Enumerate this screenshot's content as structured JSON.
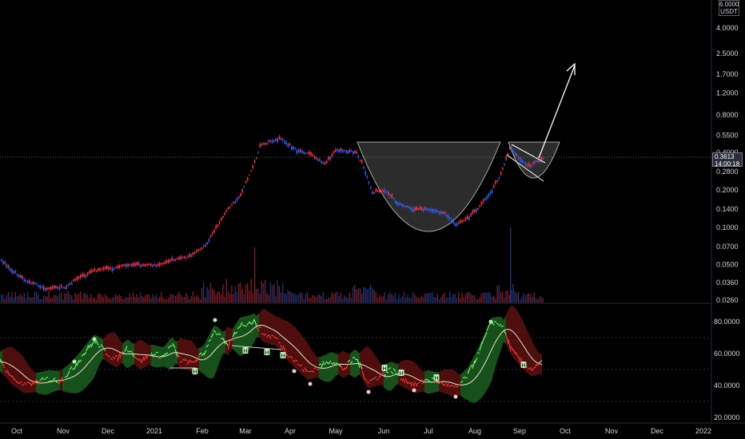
{
  "price_axis": {
    "unit": "USDT",
    "top_value": "6.0000",
    "ticks": [
      "4.0000",
      "2.5000",
      "1.7000",
      "1.2000",
      "0.8000",
      "0.5500",
      "0.4000",
      "0.2800",
      "0.2000",
      "0.1400",
      "0.1000",
      "0.0700",
      "0.0500",
      "0.0360",
      "0.0260"
    ],
    "current_price": "0.3613",
    "countdown": "14:00:18"
  },
  "oscillator_axis": {
    "ticks": [
      "80.0000",
      "60.0000",
      "40.0000",
      "20.0000"
    ]
  },
  "time_axis": {
    "labels": [
      "Oct",
      "Nov",
      "Dec",
      "2021",
      "Feb",
      "Mar",
      "Apr",
      "May",
      "Jun",
      "Jul",
      "Aug",
      "Sep",
      "Oct",
      "Nov",
      "Dec",
      "2022"
    ]
  },
  "colors": {
    "background": "#000000",
    "candle_up": "#f23645",
    "candle_down": "#2962ff",
    "cloud_green": "#1b5e20",
    "cloud_red": "#5c1010",
    "line_green": "#4caf50",
    "line_red": "#f23645",
    "pattern_fill": "#3a3a3a",
    "arrow": "#ffffff"
  },
  "markers": {
    "signal_label": "H"
  },
  "chart_data": {
    "type": "candlestick",
    "series": [
      {
        "name": "USDT",
        "x": [
          "Oct",
          "Nov",
          "Dec",
          "2021",
          "Feb",
          "Mar",
          "Apr",
          "May",
          "Jun",
          "Jul",
          "Aug",
          "Sep"
        ],
        "values": [
          0.045,
          0.035,
          0.045,
          0.05,
          0.07,
          0.2,
          0.5,
          0.42,
          0.2,
          0.12,
          0.11,
          0.38
        ]
      }
    ],
    "last_value": 0.3613,
    "ylim": [
      0.0215,
      6.0
    ],
    "y_scale": "log"
  }
}
